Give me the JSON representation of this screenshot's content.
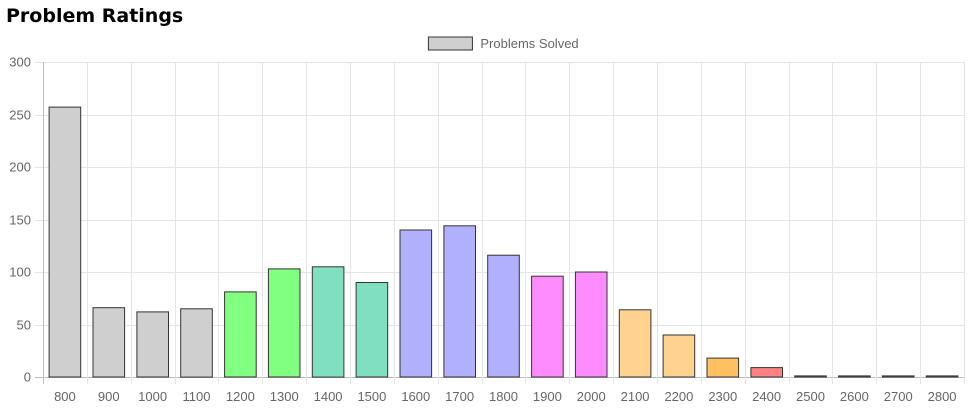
{
  "page": {
    "title": "Problem Ratings"
  },
  "chart_data": {
    "type": "bar",
    "title": "",
    "xlabel": "",
    "ylabel": "",
    "ylim": [
      0,
      300
    ],
    "yticks": [
      0,
      50,
      100,
      150,
      200,
      250,
      300
    ],
    "grid": true,
    "legend_position": "top-center",
    "categories": [
      "800",
      "900",
      "1000",
      "1100",
      "1200",
      "1300",
      "1400",
      "1500",
      "1600",
      "1700",
      "1800",
      "1900",
      "2000",
      "2100",
      "2200",
      "2300",
      "2400",
      "2500",
      "2600",
      "2700",
      "2800"
    ],
    "series": [
      {
        "name": "Problems Solved",
        "values": [
          257,
          66,
          62,
          65,
          81,
          103,
          105,
          90,
          140,
          144,
          116,
          96,
          100,
          64,
          40,
          18,
          9,
          1,
          1,
          1,
          1
        ],
        "legend_color": "#cfcfcf",
        "colors": [
          "#cfcfcf",
          "#cfcfcf",
          "#cfcfcf",
          "#cfcfcf",
          "#80ff80",
          "#80ff80",
          "#80dfc0",
          "#80dfc0",
          "#b0b0ff",
          "#b0b0ff",
          "#b0b0ff",
          "#ff8cff",
          "#ff8cff",
          "#ffd290",
          "#ffd290",
          "#ffc060",
          "#ff8080",
          "#ff8080",
          "#ff8080",
          "#ff8080",
          "#ff8080"
        ],
        "border_color": "#333333"
      }
    ]
  }
}
